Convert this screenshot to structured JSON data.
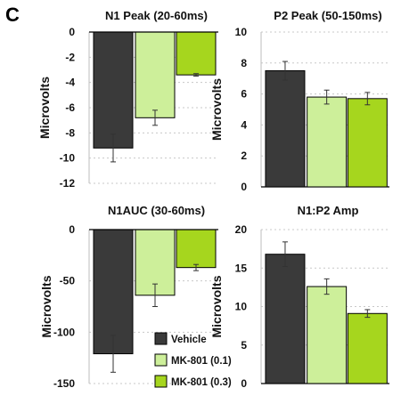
{
  "figure": {
    "panel_letter": "C",
    "colors": {
      "vehicle": "#3a3a3a",
      "mk801_01": "#cdef9a",
      "mk801_03": "#a6d61e"
    },
    "legend": [
      "Vehicle",
      "MK-801 (0.1)",
      "MK-801 (0.3)"
    ]
  },
  "chart_data": [
    {
      "type": "bar",
      "title": "N1 Peak (20-60ms)",
      "ylabel": "Microvolts",
      "categories": [
        "Vehicle",
        "MK-801 (0.1)",
        "MK-801 (0.3)"
      ],
      "values": [
        -9.2,
        -6.8,
        -3.4
      ],
      "errors": [
        1.1,
        0.6,
        0.1
      ],
      "ylim": [
        -12,
        0
      ],
      "yticks": [
        0,
        -2,
        -4,
        -6,
        -8,
        -10,
        -12
      ],
      "ytick_labels": [
        "0",
        "-2",
        "-4",
        "-6",
        "-8",
        "-10",
        "-12"
      ],
      "grid": true
    },
    {
      "type": "bar",
      "title": "P2 Peak (50-150ms)",
      "ylabel": "Microvolts",
      "categories": [
        "Vehicle",
        "MK-801 (0.1)",
        "MK-801 (0.3)"
      ],
      "values": [
        7.5,
        5.8,
        5.7
      ],
      "errors": [
        0.6,
        0.45,
        0.4
      ],
      "ylim": [
        0,
        10
      ],
      "yticks": [
        0,
        2,
        4,
        6,
        8,
        10
      ],
      "ytick_labels": [
        "0",
        "2",
        "4",
        "6",
        "8",
        "10"
      ],
      "grid": true
    },
    {
      "type": "bar",
      "title": "N1AUC (30-60ms)",
      "ylabel": "Microvolts",
      "categories": [
        "Vehicle",
        "MK-801 (0.1)",
        "MK-801 (0.3)"
      ],
      "values": [
        -121,
        -64,
        -37
      ],
      "errors": [
        18,
        11,
        3
      ],
      "ylim": [
        -150,
        0
      ],
      "yticks": [
        0,
        -50,
        -100,
        -150
      ],
      "ytick_labels": [
        "0",
        "-50",
        "-100",
        "-150"
      ],
      "grid": true
    },
    {
      "type": "bar",
      "title": "N1:P2 Amp",
      "ylabel": "Microvolts",
      "categories": [
        "Vehicle",
        "MK-801 (0.1)",
        "MK-801 (0.3)"
      ],
      "values": [
        16.8,
        12.6,
        9.1
      ],
      "errors": [
        1.6,
        1.0,
        0.5
      ],
      "ylim": [
        0,
        20
      ],
      "yticks": [
        0,
        5,
        10,
        15,
        20
      ],
      "ytick_labels": [
        "0",
        "5",
        "10",
        "15",
        "20"
      ],
      "grid": true
    }
  ]
}
